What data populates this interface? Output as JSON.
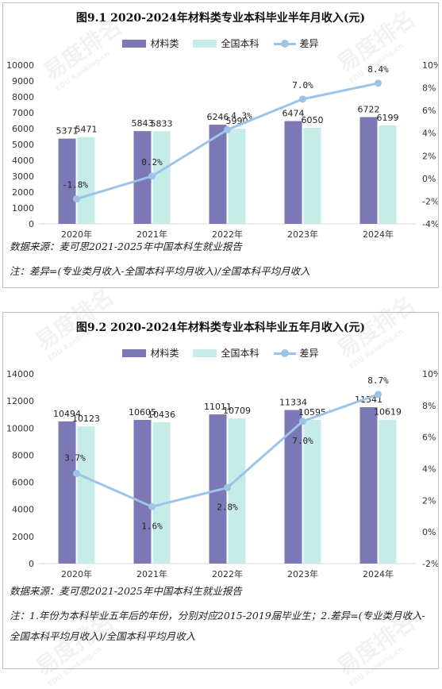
{
  "colors": {
    "bar1": "#7b78b5",
    "bar2": "#c5ece7",
    "line": "#9dc3e6",
    "axis": "#d9d9d9"
  },
  "panels": [
    {
      "title": "图9.1 2020-2024年材料类专业本科毕业半年月收入(元)",
      "legend": [
        "材料类",
        "全国本科",
        "差异"
      ],
      "source": "数据来源：麦可思2021-2025年中国本科生就业报告",
      "note": "注：差异=(专业类月收入-全国本科平均月收入)/全国本科平均月收入"
    },
    {
      "title": "图9.2 2020-2024年材料类专业本科毕业五年月收入(元)",
      "legend": [
        "材料类",
        "全国本科",
        "差异"
      ],
      "source": "数据来源：麦可思2021-2025年中国本科生就业报告",
      "note": "注：1.年份为本科毕业五年后的年份，分别对应2015-2019届毕业生；2.差异=(专业类月收入-全国本科平均月收入)/全国本科平均月收入"
    }
  ],
  "chart_data": [
    {
      "type": "bar",
      "categories": [
        "2020年",
        "2021年",
        "2022年",
        "2023年",
        "2024年"
      ],
      "series": [
        {
          "name": "材料类",
          "type": "bar",
          "values": [
            5371,
            5843,
            6246,
            6474,
            6722
          ]
        },
        {
          "name": "全国本科",
          "type": "bar",
          "values": [
            5471,
            5833,
            5990,
            6050,
            6199
          ]
        },
        {
          "name": "差异",
          "type": "line",
          "axis": "right",
          "values": [
            -1.8,
            0.2,
            4.3,
            7.0,
            8.4
          ],
          "labels": [
            "-1.8%",
            "0.2%",
            "4.3%",
            "7.0%",
            "8.4%"
          ]
        }
      ],
      "y_left": {
        "min": 0,
        "max": 10000,
        "step": 1000
      },
      "y_right": {
        "min": -4,
        "max": 10,
        "step": 2,
        "tick_labels": [
          "-4%",
          "-2%",
          "0%",
          "2%",
          "4%",
          "6%",
          "8%",
          "10%"
        ]
      },
      "grid": false,
      "legend_position": "top"
    },
    {
      "type": "bar",
      "categories": [
        "2020年",
        "2021年",
        "2022年",
        "2023年",
        "2024年"
      ],
      "series": [
        {
          "name": "材料类",
          "type": "bar",
          "values": [
            10494,
            10605,
            11011,
            11334,
            11541
          ]
        },
        {
          "name": "全国本科",
          "type": "bar",
          "values": [
            10123,
            10436,
            10709,
            10595,
            10619
          ]
        },
        {
          "name": "差异",
          "type": "line",
          "axis": "right",
          "values": [
            3.7,
            1.6,
            2.8,
            7.0,
            8.7
          ],
          "labels": [
            "3.7%",
            "1.6%",
            "2.8%",
            "7.0%",
            "8.7%"
          ]
        }
      ],
      "y_left": {
        "min": 0,
        "max": 14000,
        "step": 2000
      },
      "y_right": {
        "min": -2,
        "max": 10,
        "step": 2,
        "tick_labels": [
          "-2%",
          "0%",
          "2%",
          "4%",
          "6%",
          "8%",
          "10%"
        ]
      },
      "grid": false,
      "legend_position": "top"
    }
  ],
  "watermark": {
    "text": "易度排名",
    "subtext": "EDU Ranking.cn"
  }
}
